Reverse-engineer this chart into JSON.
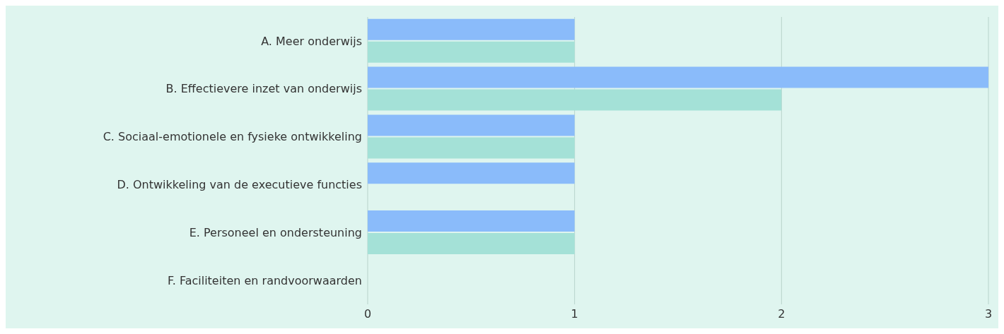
{
  "chart_data": {
    "type": "bar",
    "orientation": "horizontal",
    "categories": [
      "A. Meer onderwijs",
      "B. Effectievere inzet van onderwijs",
      "C. Sociaal-emotionele en fysieke ontwikkeling",
      "D. Ontwikkeling van de executieve functies",
      "E. Personeel en ondersteuning",
      "F. Faciliteiten en randvoorwaarden"
    ],
    "series": [
      {
        "color": "#8abbfa",
        "values": [
          1,
          3,
          1,
          1,
          1,
          0
        ]
      },
      {
        "color": "#a4e1d7",
        "values": [
          1,
          2,
          1,
          0,
          1,
          0
        ]
      }
    ],
    "xlim": [
      0,
      3
    ],
    "xticks": [
      0,
      1,
      2,
      3
    ],
    "grid": "x",
    "legend": false
  }
}
